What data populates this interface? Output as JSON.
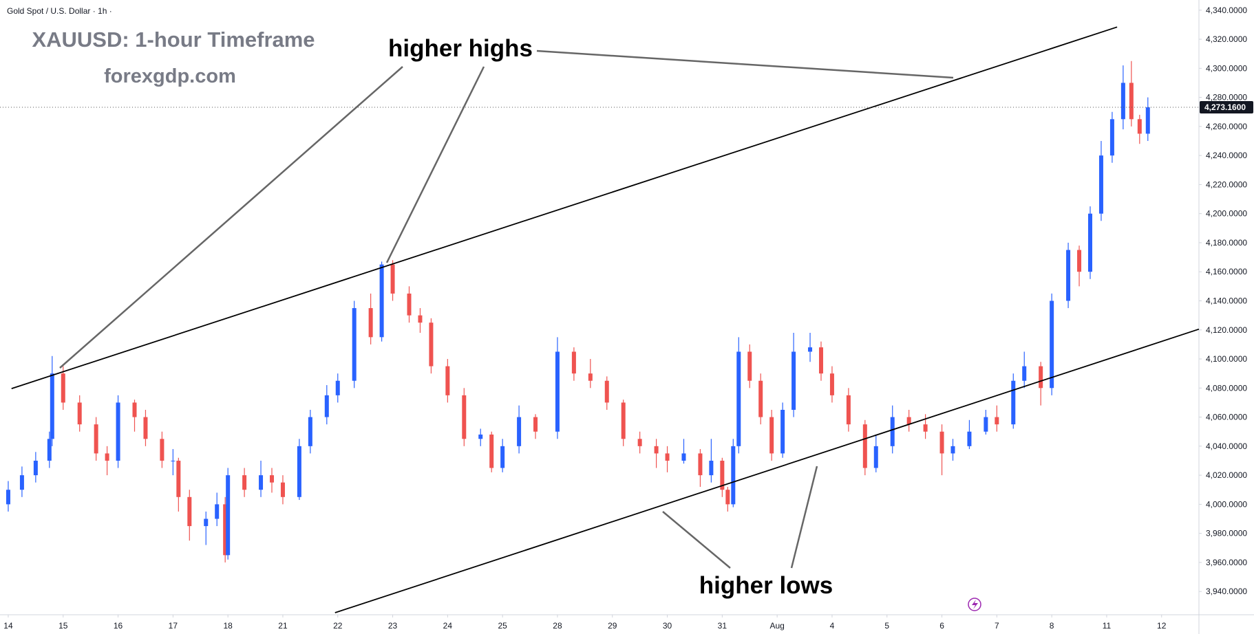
{
  "chart_data": {
    "type": "candlestick",
    "symbol": "Gold Spot / U.S. Dollar · 1h ·",
    "title": "XAUUSD: 1-hour Timeframe",
    "subtitle": "forexgdp.com",
    "annotations": [
      "higher highs",
      "higher lows"
    ],
    "up_color": "#2962ff",
    "down_color": "#ef5350",
    "x": [
      0,
      0.25,
      0.5,
      0.75,
      0.8,
      1,
      1.3,
      1.6,
      1.8,
      2,
      2.3,
      2.5,
      2.8,
      3,
      3.1,
      3.3,
      3.6,
      3.8,
      3.95,
      4,
      4.3,
      4.6,
      4.8,
      5,
      5.3,
      5.5,
      5.8,
      6,
      6.3,
      6.6,
      6.8,
      7,
      7.3,
      7.5,
      7.7,
      8,
      8.3,
      8.6,
      8.8,
      9,
      9.3,
      9.6,
      10,
      10.3,
      10.6,
      10.9,
      11.2,
      11.5,
      11.8,
      12,
      12.3,
      12.6,
      12.8,
      13,
      13.1,
      13.2,
      13.3,
      13.5,
      13.7,
      13.9,
      14.1,
      14.3,
      14.6,
      14.8,
      15,
      15.3,
      15.6,
      15.8,
      16.1,
      16.4,
      16.7,
      17,
      17.2,
      17.5,
      17.8,
      18,
      18.3,
      18.5,
      18.8,
      19,
      19.3,
      19.5,
      19.7,
      19.9,
      20.1,
      20.3,
      20.45,
      20.6,
      20.75
    ],
    "open": [
      4000,
      4010,
      4020,
      4030,
      4045,
      4090,
      4070,
      4055,
      4035,
      4030,
      4070,
      4060,
      4045,
      4030,
      4030,
      4005,
      3985,
      3990,
      4000,
      3965,
      4020,
      4010,
      4020,
      4015,
      4005,
      4040,
      4060,
      4075,
      4085,
      4135,
      4115,
      4165,
      4145,
      4130,
      4125,
      4095,
      4075,
      4045,
      4048,
      4025,
      4040,
      4060,
      4050,
      4105,
      4090,
      4085,
      4070,
      4045,
      4040,
      4035,
      4030,
      4035,
      4020,
      4030,
      4010,
      4000,
      4040,
      4105,
      4085,
      4060,
      4035,
      4065,
      4105,
      4108,
      4090,
      4075,
      4055,
      4025,
      4040,
      4060,
      4055,
      4050,
      4035,
      4040,
      4050,
      4060,
      4055,
      4085,
      4095,
      4080,
      4140,
      4175,
      4160,
      4200,
      4240,
      4265,
      4290,
      4265,
      4255
    ],
    "high": [
      4016,
      4026,
      4036,
      4050,
      4102,
      4095,
      4075,
      4060,
      4040,
      4075,
      4072,
      4065,
      4050,
      4038,
      4032,
      4010,
      3995,
      4008,
      4005,
      4025,
      4025,
      4030,
      4025,
      4020,
      4045,
      4065,
      4082,
      4090,
      4140,
      4145,
      4167,
      4168,
      4150,
      4135,
      4128,
      4100,
      4080,
      4052,
      4050,
      4045,
      4068,
      4062,
      4115,
      4108,
      4100,
      4088,
      4072,
      4050,
      4045,
      4040,
      4045,
      4038,
      4045,
      4032,
      4012,
      4045,
      4115,
      4110,
      4090,
      4065,
      4070,
      4118,
      4118,
      4112,
      4095,
      4080,
      4058,
      4048,
      4068,
      4065,
      4062,
      4055,
      4045,
      4058,
      4065,
      4068,
      4090,
      4105,
      4098,
      4145,
      4180,
      4178,
      4205,
      4250,
      4270,
      4302,
      4305,
      4268,
      4280
    ],
    "low": [
      3995,
      4005,
      4015,
      4025,
      4040,
      4065,
      4050,
      4030,
      4020,
      4025,
      4050,
      4040,
      4025,
      4020,
      3995,
      3975,
      3972,
      3985,
      3960,
      3962,
      4005,
      4005,
      4008,
      4000,
      4003,
      4035,
      4055,
      4070,
      4080,
      4110,
      4112,
      4140,
      4125,
      4118,
      4090,
      4070,
      4040,
      4040,
      4022,
      4022,
      4035,
      4045,
      4045,
      4085,
      4080,
      4065,
      4040,
      4035,
      4025,
      4022,
      4028,
      4012,
      4015,
      4005,
      3995,
      3998,
      4035,
      4080,
      4055,
      4030,
      4032,
      4060,
      4098,
      4085,
      4070,
      4050,
      4020,
      4022,
      4035,
      4050,
      4045,
      4020,
      4030,
      4038,
      4048,
      4050,
      4052,
      4080,
      4068,
      4075,
      4135,
      4150,
      4155,
      4195,
      4235,
      4258,
      4260,
      4248,
      4250
    ],
    "close": [
      4010,
      4020,
      4030,
      4045,
      4090,
      4070,
      4055,
      4035,
      4030,
      4070,
      4060,
      4045,
      4030,
      4030,
      4005,
      3985,
      3990,
      4000,
      3965,
      4020,
      4010,
      4020,
      4015,
      4005,
      4040,
      4060,
      4075,
      4085,
      4135,
      4115,
      4165,
      4145,
      4130,
      4125,
      4095,
      4075,
      4045,
      4048,
      4025,
      4040,
      4060,
      4050,
      4105,
      4090,
      4085,
      4070,
      4045,
      4040,
      4035,
      4030,
      4035,
      4020,
      4030,
      4010,
      4000,
      4040,
      4105,
      4085,
      4060,
      4035,
      4065,
      4105,
      4108,
      4090,
      4075,
      4055,
      4025,
      4040,
      4060,
      4055,
      4050,
      4035,
      4040,
      4050,
      4060,
      4055,
      4085,
      4095,
      4080,
      4140,
      4175,
      4160,
      4200,
      4240,
      4265,
      4290,
      4265,
      4255,
      4273.16
    ],
    "last_price": {
      "value": 4273.16,
      "label": "4,273.1600"
    },
    "trendlines": [
      {
        "x": [
          0.06,
          20.19
        ],
        "y": [
          4079.6,
          4328.4
        ]
      },
      {
        "x": [
          5.95,
          21.68
        ],
        "y": [
          3925.4,
          4120.5
        ]
      }
    ],
    "xlim": [
      -0.15,
      21.68
    ],
    "ylim": [
      3924,
      4347
    ],
    "xticks": [
      {
        "value": 0,
        "label": "14"
      },
      {
        "value": 1,
        "label": "15"
      },
      {
        "value": 2,
        "label": "16"
      },
      {
        "value": 3,
        "label": "17"
      },
      {
        "value": 4,
        "label": "18"
      },
      {
        "value": 5,
        "label": "21"
      },
      {
        "value": 6,
        "label": "22"
      },
      {
        "value": 7,
        "label": "23"
      },
      {
        "value": 8,
        "label": "24"
      },
      {
        "value": 9,
        "label": "25"
      },
      {
        "value": 10,
        "label": "28"
      },
      {
        "value": 11,
        "label": "29"
      },
      {
        "value": 12,
        "label": "30"
      },
      {
        "value": 13,
        "label": "31"
      },
      {
        "value": 14,
        "label": "Aug"
      },
      {
        "value": 15,
        "label": "4"
      },
      {
        "value": 16,
        "label": "5"
      },
      {
        "value": 17,
        "label": "6"
      },
      {
        "value": 18,
        "label": "7"
      },
      {
        "value": 19,
        "label": "8"
      },
      {
        "value": 20,
        "label": "11"
      },
      {
        "value": 21,
        "label": "12"
      }
    ],
    "yticks": [
      {
        "value": 3940,
        "label": "3,940.0000"
      },
      {
        "value": 3960,
        "label": "3,960.0000"
      },
      {
        "value": 3980,
        "label": "3,980.0000"
      },
      {
        "value": 4000,
        "label": "4,000.0000"
      },
      {
        "value": 4020,
        "label": "4,020.0000"
      },
      {
        "value": 4040,
        "label": "4,040.0000"
      },
      {
        "value": 4060,
        "label": "4,060.0000"
      },
      {
        "value": 4080,
        "label": "4,080.0000"
      },
      {
        "value": 4100,
        "label": "4,100.0000"
      },
      {
        "value": 4120,
        "label": "4,120.0000"
      },
      {
        "value": 4140,
        "label": "4,140.0000"
      },
      {
        "value": 4160,
        "label": "4,160.0000"
      },
      {
        "value": 4180,
        "label": "4,180.0000"
      },
      {
        "value": 4200,
        "label": "4,200.0000"
      },
      {
        "value": 4220,
        "label": "4,220.0000"
      },
      {
        "value": 4240,
        "label": "4,240.0000"
      },
      {
        "value": 4260,
        "label": "4,260.0000"
      },
      {
        "value": 4280,
        "label": "4,280.0000"
      },
      {
        "value": 4300,
        "label": "4,300.0000"
      },
      {
        "value": 4320,
        "label": "4,320.0000"
      },
      {
        "value": 4340,
        "label": "4,340.0000"
      }
    ]
  }
}
